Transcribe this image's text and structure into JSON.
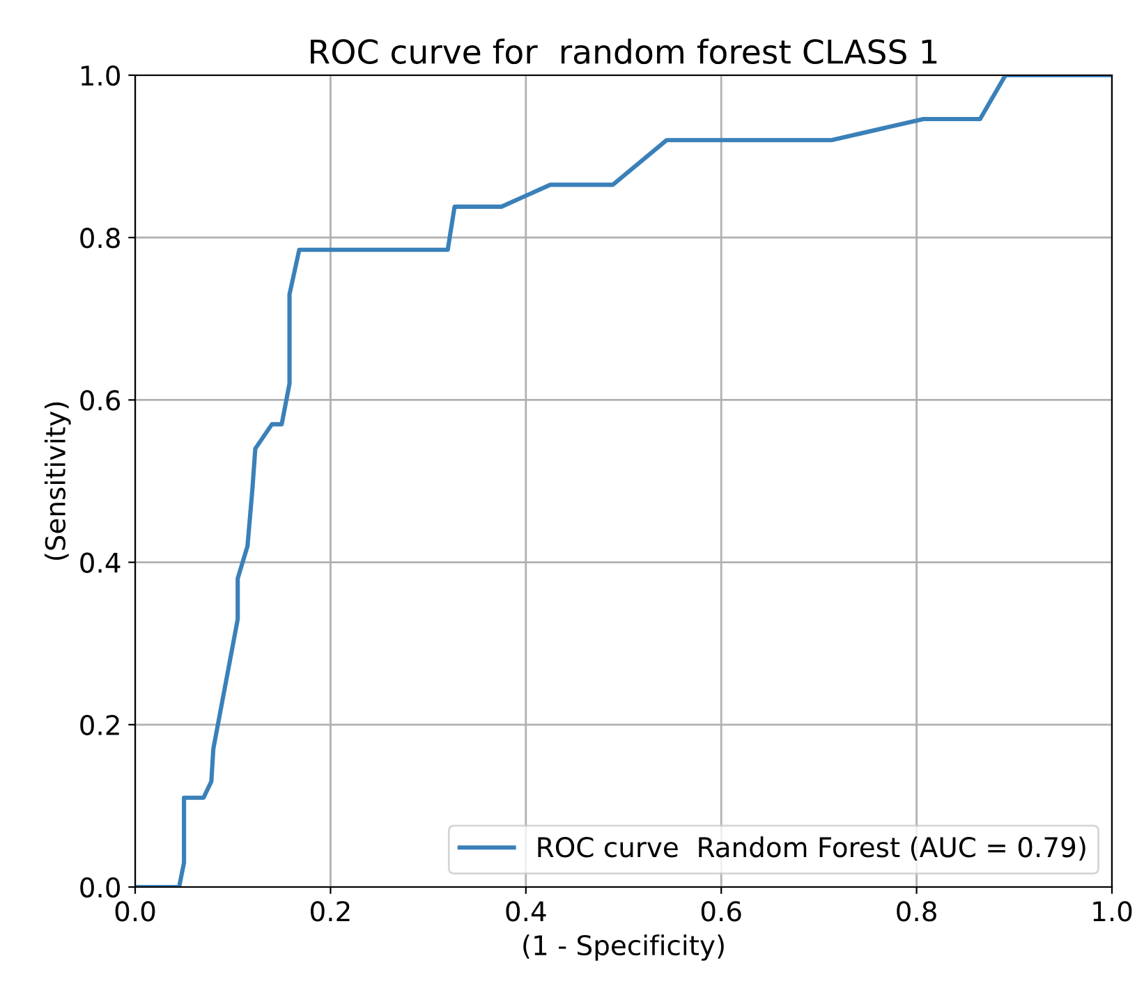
{
  "chart_data": {
    "type": "line",
    "title": "ROC curve for  random forest CLASS 1",
    "xlabel": "(1 - Specificity)",
    "ylabel": "(Sensitivity)",
    "series": [
      {
        "name": "ROC curve  Random Forest (AUC = 0.79)",
        "color": "#3a80b9",
        "x": [
          0,
          0.045,
          0.05,
          0.05,
          0.07,
          0.078,
          0.08,
          0.105,
          0.105,
          0.115,
          0.12,
          0.123,
          0.14,
          0.15,
          0.158,
          0.158,
          0.168,
          0.32,
          0.327,
          0.375,
          0.425,
          0.489,
          0.544,
          0.713,
          0.807,
          0.865,
          0.891,
          1.0
        ],
        "values": [
          0,
          0,
          0.03,
          0.11,
          0.11,
          0.13,
          0.17,
          0.33,
          0.38,
          0.42,
          0.49,
          0.54,
          0.57,
          0.57,
          0.62,
          0.73,
          0.785,
          0.785,
          0.838,
          0.838,
          0.865,
          0.865,
          0.92,
          0.92,
          0.946,
          0.946,
          1.0,
          1.0
        ]
      }
    ],
    "xlim": [
      0,
      1
    ],
    "ylim": [
      0,
      1
    ],
    "xticks": [
      {
        "value": 0,
        "label": "0.0"
      },
      0.2,
      0.4,
      0.6,
      0.8,
      {
        "value": 1,
        "label": "1.0"
      }
    ],
    "yticks": [
      {
        "value": 0,
        "label": "0.0"
      },
      0.2,
      0.4,
      0.6,
      0.8,
      {
        "value": 1,
        "label": "1.0"
      }
    ],
    "grid": true,
    "legend": "bottom right"
  }
}
